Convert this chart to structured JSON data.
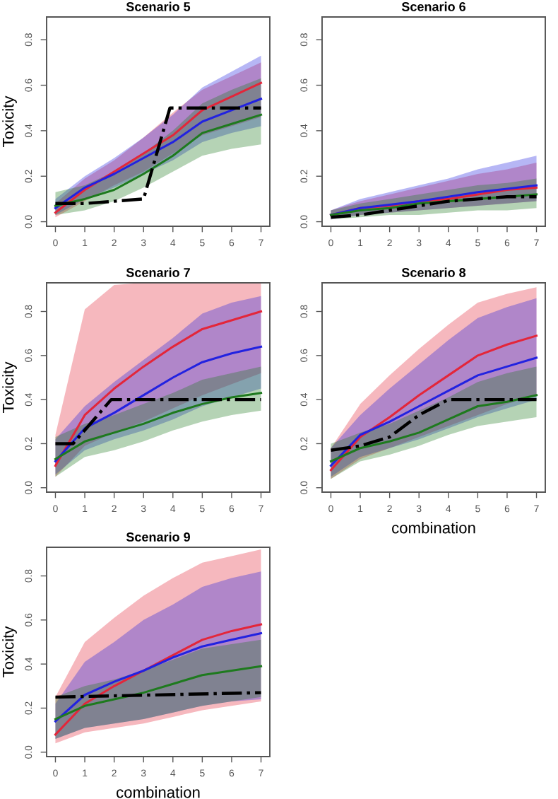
{
  "chart_data": [
    {
      "type": "line",
      "title": "Scenario 5",
      "ylabel": "Toxicity",
      "x": [
        0,
        1,
        2,
        3,
        4,
        5,
        6,
        7
      ],
      "xlim": [
        -0.3,
        7.3
      ],
      "xticks": [
        0,
        1,
        2,
        3,
        4,
        5,
        6,
        7
      ],
      "ylim": [
        -0.02,
        0.9
      ],
      "yticks": [
        {
          "value": 0,
          "label": "0.0"
        },
        {
          "value": 0.2,
          "label": "0.2"
        },
        {
          "value": 0.4,
          "label": "0.4"
        },
        {
          "value": 0.6,
          "label": "0.6"
        },
        {
          "value": 0.8,
          "label": "0.8"
        }
      ],
      "grid": false,
      "legend": false,
      "series": [
        {
          "color": "#e3263a",
          "values": [
            0.04,
            0.14,
            0.22,
            0.3,
            0.38,
            0.49,
            0.55,
            0.61
          ],
          "lower": [
            0.02,
            0.09,
            0.16,
            0.22,
            0.3,
            0.38,
            0.42,
            0.46
          ],
          "upper": [
            0.08,
            0.19,
            0.27,
            0.37,
            0.48,
            0.58,
            0.64,
            0.7
          ]
        },
        {
          "color": "#2222e0",
          "values": [
            0.06,
            0.15,
            0.21,
            0.28,
            0.35,
            0.44,
            0.49,
            0.54
          ],
          "lower": [
            0.03,
            0.1,
            0.15,
            0.21,
            0.27,
            0.35,
            0.39,
            0.42
          ],
          "upper": [
            0.1,
            0.2,
            0.28,
            0.37,
            0.47,
            0.59,
            0.66,
            0.73
          ]
        },
        {
          "color": "#1e7a1e",
          "values": [
            0.07,
            0.1,
            0.14,
            0.21,
            0.29,
            0.39,
            0.43,
            0.47
          ],
          "lower": [
            0.03,
            0.05,
            0.09,
            0.15,
            0.22,
            0.29,
            0.32,
            0.34
          ],
          "upper": [
            0.13,
            0.16,
            0.22,
            0.3,
            0.4,
            0.52,
            0.58,
            0.63
          ]
        },
        {
          "color": "#000000",
          "line_style": "dashdot",
          "x": [
            0,
            1,
            2,
            3,
            3.9,
            5,
            6,
            7
          ],
          "values": [
            0.08,
            0.08,
            0.09,
            0.1,
            0.5,
            0.5,
            0.5,
            0.5
          ]
        }
      ]
    },
    {
      "type": "line",
      "title": "Scenario 6",
      "x": [
        0,
        1,
        2,
        3,
        4,
        5,
        6,
        7
      ],
      "xlim": [
        -0.3,
        7.3
      ],
      "xticks": [
        0,
        1,
        2,
        3,
        4,
        5,
        6,
        7
      ],
      "ylim": [
        -0.02,
        0.9
      ],
      "yticks": [
        {
          "value": 0,
          "label": "0.0"
        },
        {
          "value": 0.2,
          "label": "0.2"
        },
        {
          "value": 0.4,
          "label": "0.4"
        },
        {
          "value": 0.6,
          "label": "0.6"
        },
        {
          "value": 0.8,
          "label": "0.8"
        }
      ],
      "grid": false,
      "legend": false,
      "series": [
        {
          "color": "#e3263a",
          "values": [
            0.03,
            0.06,
            0.07,
            0.09,
            0.1,
            0.12,
            0.14,
            0.15
          ],
          "lower": [
            0.01,
            0.03,
            0.04,
            0.05,
            0.06,
            0.07,
            0.08,
            0.09
          ],
          "upper": [
            0.05,
            0.09,
            0.12,
            0.15,
            0.18,
            0.21,
            0.23,
            0.26
          ]
        },
        {
          "color": "#2222e0",
          "values": [
            0.03,
            0.06,
            0.075,
            0.09,
            0.11,
            0.13,
            0.145,
            0.16
          ],
          "lower": [
            0.01,
            0.03,
            0.04,
            0.05,
            0.06,
            0.07,
            0.08,
            0.09
          ],
          "upper": [
            0.05,
            0.1,
            0.13,
            0.16,
            0.19,
            0.23,
            0.26,
            0.29
          ]
        },
        {
          "color": "#1e7a1e",
          "values": [
            0.03,
            0.05,
            0.06,
            0.08,
            0.09,
            0.1,
            0.11,
            0.12
          ],
          "lower": [
            0.01,
            0.02,
            0.03,
            0.03,
            0.04,
            0.05,
            0.05,
            0.06
          ],
          "upper": [
            0.05,
            0.08,
            0.1,
            0.12,
            0.14,
            0.16,
            0.17,
            0.19
          ]
        },
        {
          "color": "#000000",
          "line_style": "dashdot",
          "values": [
            0.02,
            0.03,
            0.05,
            0.07,
            0.09,
            0.1,
            0.11,
            0.11
          ]
        }
      ]
    },
    {
      "type": "line",
      "title": "Scenario 7",
      "ylabel": "Toxicity",
      "x": [
        0,
        1,
        2,
        3,
        4,
        5,
        6,
        7
      ],
      "xlim": [
        -0.3,
        7.3
      ],
      "xticks": [
        0,
        1,
        2,
        3,
        4,
        5,
        6,
        7
      ],
      "ylim": [
        -0.02,
        0.93
      ],
      "yticks": [
        {
          "value": 0,
          "label": "0.0"
        },
        {
          "value": 0.2,
          "label": "0.2"
        },
        {
          "value": 0.4,
          "label": "0.4"
        },
        {
          "value": 0.6,
          "label": "0.6"
        },
        {
          "value": 0.8,
          "label": "0.8"
        }
      ],
      "grid": false,
      "legend": false,
      "series": [
        {
          "color": "#e3263a",
          "values": [
            0.1,
            0.33,
            0.45,
            0.55,
            0.64,
            0.72,
            0.76,
            0.8
          ],
          "lower": [
            0.05,
            0.19,
            0.25,
            0.3,
            0.36,
            0.42,
            0.47,
            0.52
          ],
          "upper": [
            0.24,
            0.81,
            0.92,
            0.93,
            0.93,
            0.93,
            0.93,
            0.93
          ]
        },
        {
          "color": "#2222e0",
          "values": [
            0.12,
            0.27,
            0.34,
            0.42,
            0.5,
            0.57,
            0.61,
            0.64
          ],
          "lower": [
            0.06,
            0.17,
            0.22,
            0.26,
            0.31,
            0.37,
            0.41,
            0.45
          ],
          "upper": [
            0.22,
            0.37,
            0.48,
            0.58,
            0.68,
            0.79,
            0.84,
            0.87
          ]
        },
        {
          "color": "#1e7a1e",
          "values": [
            0.13,
            0.21,
            0.25,
            0.29,
            0.34,
            0.38,
            0.41,
            0.43
          ],
          "lower": [
            0.05,
            0.14,
            0.17,
            0.21,
            0.26,
            0.3,
            0.33,
            0.35
          ],
          "upper": [
            0.23,
            0.29,
            0.33,
            0.38,
            0.43,
            0.49,
            0.52,
            0.55
          ]
        },
        {
          "color": "#000000",
          "line_style": "dashdot",
          "x": [
            0,
            0.6,
            1.9,
            7
          ],
          "values": [
            0.2,
            0.2,
            0.4,
            0.4
          ]
        }
      ]
    },
    {
      "type": "line",
      "title": "Scenario 8",
      "xlabel": "combination",
      "x": [
        0,
        1,
        2,
        3,
        4,
        5,
        6,
        7
      ],
      "xlim": [
        -0.3,
        7.3
      ],
      "xticks": [
        0,
        1,
        2,
        3,
        4,
        5,
        6,
        7
      ],
      "ylim": [
        -0.02,
        0.93
      ],
      "yticks": [
        {
          "value": 0,
          "label": "0.0"
        },
        {
          "value": 0.2,
          "label": "0.2"
        },
        {
          "value": 0.4,
          "label": "0.4"
        },
        {
          "value": 0.6,
          "label": "0.6"
        },
        {
          "value": 0.8,
          "label": "0.8"
        }
      ],
      "grid": false,
      "legend": false,
      "series": [
        {
          "color": "#e3263a",
          "values": [
            0.08,
            0.23,
            0.32,
            0.42,
            0.51,
            0.6,
            0.65,
            0.69
          ],
          "lower": [
            0.04,
            0.13,
            0.18,
            0.23,
            0.28,
            0.33,
            0.38,
            0.42
          ],
          "upper": [
            0.18,
            0.38,
            0.51,
            0.63,
            0.74,
            0.84,
            0.88,
            0.91
          ]
        },
        {
          "color": "#2222e0",
          "values": [
            0.1,
            0.24,
            0.3,
            0.37,
            0.44,
            0.51,
            0.55,
            0.59
          ],
          "lower": [
            0.05,
            0.14,
            0.18,
            0.22,
            0.27,
            0.32,
            0.36,
            0.4
          ],
          "upper": [
            0.18,
            0.33,
            0.45,
            0.56,
            0.67,
            0.77,
            0.82,
            0.86
          ]
        },
        {
          "color": "#1e7a1e",
          "values": [
            0.12,
            0.18,
            0.21,
            0.25,
            0.31,
            0.37,
            0.39,
            0.42
          ],
          "lower": [
            0.04,
            0.12,
            0.15,
            0.19,
            0.24,
            0.28,
            0.3,
            0.32
          ],
          "upper": [
            0.2,
            0.25,
            0.29,
            0.35,
            0.41,
            0.48,
            0.52,
            0.55
          ]
        },
        {
          "color": "#000000",
          "line_style": "dashdot",
          "x": [
            0,
            1,
            2,
            3,
            4,
            7
          ],
          "values": [
            0.17,
            0.19,
            0.23,
            0.33,
            0.4,
            0.4
          ]
        }
      ]
    },
    {
      "type": "line",
      "title": "Scenario 9",
      "ylabel": "Toxicity",
      "xlabel": "combination",
      "x": [
        0,
        1,
        2,
        3,
        4,
        5,
        6,
        7
      ],
      "xlim": [
        -0.3,
        7.3
      ],
      "xticks": [
        0,
        1,
        2,
        3,
        4,
        5,
        6,
        7
      ],
      "ylim": [
        -0.02,
        0.93
      ],
      "yticks": [
        {
          "value": 0,
          "label": "0.0"
        },
        {
          "value": 0.2,
          "label": "0.2"
        },
        {
          "value": 0.4,
          "label": "0.4"
        },
        {
          "value": 0.6,
          "label": "0.6"
        },
        {
          "value": 0.8,
          "label": "0.8"
        }
      ],
      "grid": false,
      "legend": false,
      "series": [
        {
          "color": "#e3263a",
          "values": [
            0.08,
            0.22,
            0.3,
            0.37,
            0.44,
            0.51,
            0.55,
            0.58
          ],
          "lower": [
            0.04,
            0.09,
            0.11,
            0.13,
            0.16,
            0.19,
            0.21,
            0.23
          ],
          "upper": [
            0.25,
            0.5,
            0.61,
            0.71,
            0.79,
            0.86,
            0.89,
            0.92
          ]
        },
        {
          "color": "#2222e0",
          "values": [
            0.14,
            0.26,
            0.32,
            0.37,
            0.43,
            0.48,
            0.51,
            0.54
          ],
          "lower": [
            0.06,
            0.11,
            0.13,
            0.15,
            0.18,
            0.21,
            0.23,
            0.24
          ],
          "upper": [
            0.22,
            0.41,
            0.5,
            0.6,
            0.67,
            0.75,
            0.79,
            0.82
          ]
        },
        {
          "color": "#1e7a1e",
          "values": [
            0.15,
            0.21,
            0.24,
            0.27,
            0.31,
            0.35,
            0.37,
            0.39
          ],
          "lower": [
            0.06,
            0.11,
            0.13,
            0.15,
            0.18,
            0.21,
            0.23,
            0.25
          ],
          "upper": [
            0.25,
            0.3,
            0.33,
            0.37,
            0.42,
            0.47,
            0.49,
            0.51
          ]
        },
        {
          "color": "#000000",
          "line_style": "dashdot",
          "x": [
            0,
            7
          ],
          "values": [
            0.25,
            0.27
          ]
        }
      ]
    }
  ]
}
